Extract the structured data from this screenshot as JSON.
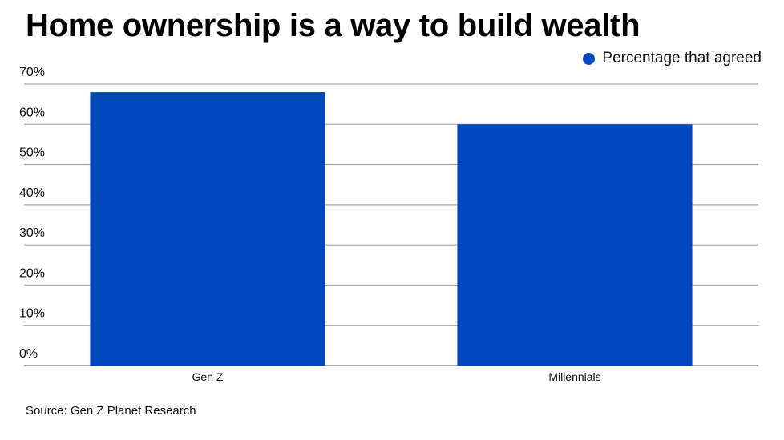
{
  "chart_data": {
    "type": "bar",
    "title": "Home ownership is a way to build wealth",
    "categories": [
      "Gen Z",
      "Millennials"
    ],
    "series": [
      {
        "name": "Percentage that agreed",
        "values": [
          68,
          60
        ],
        "color": "#0047BE"
      }
    ],
    "ylim": [
      0,
      70
    ],
    "yticks": [
      "0%",
      "10%",
      "20%",
      "30%",
      "40%",
      "50%",
      "60%",
      "70%"
    ],
    "xlabel": "",
    "ylabel": "",
    "grid": true,
    "legend_position": "top-right",
    "source": "Source: Gen Z Planet Research"
  }
}
